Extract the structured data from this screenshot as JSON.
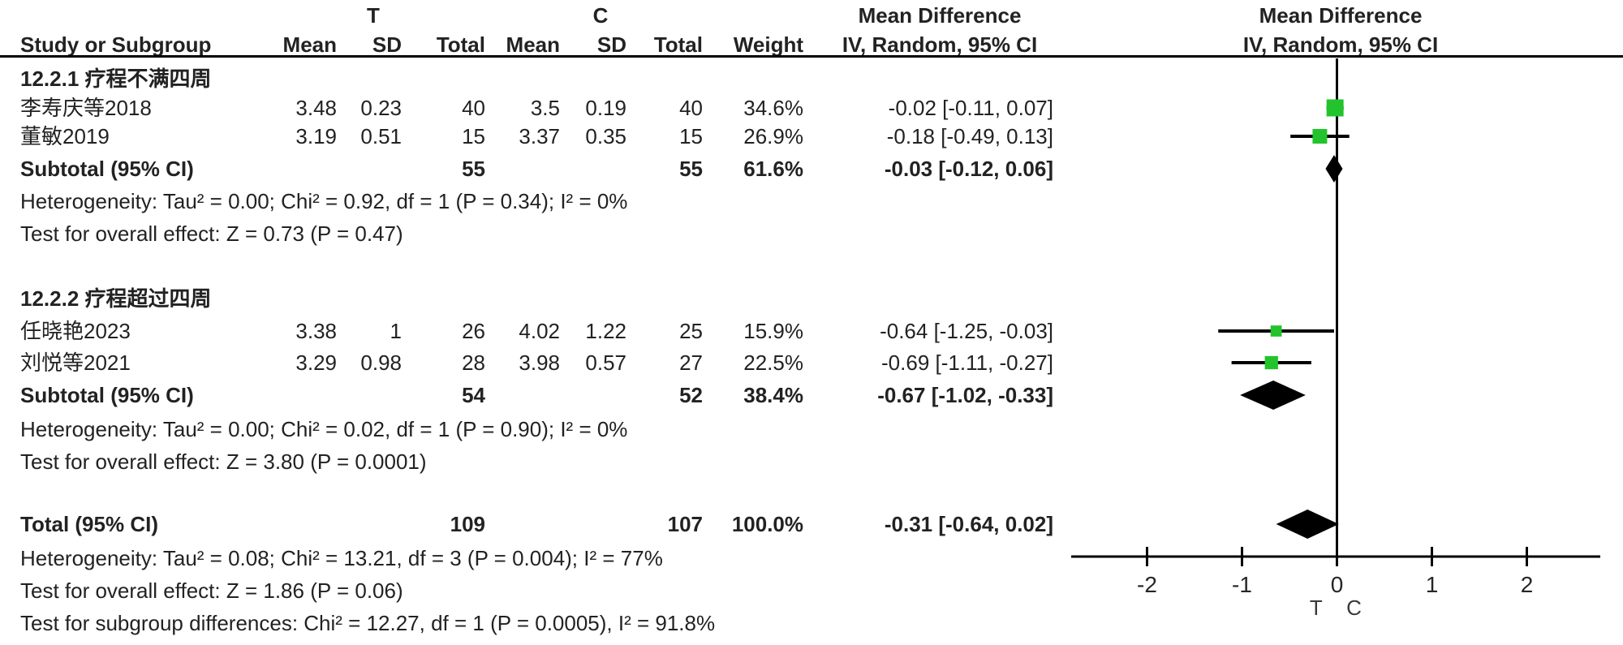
{
  "header": {
    "group_t": "T",
    "group_c": "C",
    "effect_title": "Mean Difference",
    "effect_subtitle": "IV, Random, 95% CI",
    "study": "Study or Subgroup",
    "mean": "Mean",
    "sd": "SD",
    "total": "Total",
    "weight": "Weight"
  },
  "groups": [
    {
      "title": "12.2.1 疗程不满四周",
      "studies": [
        {
          "name": "李寿庆等2018",
          "mean_t": "3.48",
          "sd_t": "0.23",
          "total_t": "40",
          "mean_c": "3.5",
          "sd_c": "0.19",
          "total_c": "40",
          "weight": "34.6%",
          "ci": "-0.02 [-0.11, 0.07]"
        },
        {
          "name": "董敏2019",
          "mean_t": "3.19",
          "sd_t": "0.51",
          "total_t": "15",
          "mean_c": "3.37",
          "sd_c": "0.35",
          "total_c": "15",
          "weight": "26.9%",
          "ci": "-0.18 [-0.49, 0.13]"
        }
      ],
      "subtotal": {
        "label": "Subtotal (95% CI)",
        "total_t": "55",
        "total_c": "55",
        "weight": "61.6%",
        "ci": "-0.03 [-0.12, 0.06]"
      },
      "heterogeneity": "Heterogeneity: Tau² = 0.00; Chi² = 0.92, df = 1 (P = 0.34); I² = 0%",
      "overall_effect": "Test for overall effect: Z = 0.73 (P = 0.47)"
    },
    {
      "title": "12.2.2 疗程超过四周",
      "studies": [
        {
          "name": "任晓艳2023",
          "mean_t": "3.38",
          "sd_t": "1",
          "total_t": "26",
          "mean_c": "4.02",
          "sd_c": "1.22",
          "total_c": "25",
          "weight": "15.9%",
          "ci": "-0.64 [-1.25, -0.03]"
        },
        {
          "name": "刘悦等2021",
          "mean_t": "3.29",
          "sd_t": "0.98",
          "total_t": "28",
          "mean_c": "3.98",
          "sd_c": "0.57",
          "total_c": "27",
          "weight": "22.5%",
          "ci": "-0.69 [-1.11, -0.27]"
        }
      ],
      "subtotal": {
        "label": "Subtotal (95% CI)",
        "total_t": "54",
        "total_c": "52",
        "weight": "38.4%",
        "ci": "-0.67 [-1.02, -0.33]"
      },
      "heterogeneity": "Heterogeneity: Tau² = 0.00; Chi² = 0.02, df = 1 (P = 0.90); I² = 0%",
      "overall_effect": "Test for overall effect: Z = 3.80 (P = 0.0001)"
    }
  ],
  "total": {
    "label": "Total (95% CI)",
    "total_t": "109",
    "total_c": "107",
    "weight": "100.0%",
    "ci": "-0.31 [-0.64, 0.02]"
  },
  "footer": {
    "heterogeneity": "Heterogeneity: Tau² = 0.08; Chi² = 13.21, df = 3 (P = 0.004); I² = 77%",
    "overall_effect": "Test for overall effect: Z = 1.86 (P = 0.06)",
    "subgroup_diff": "Test for subgroup differences: Chi² = 12.27, df = 1 (P = 0.0005), I² = 91.8%"
  },
  "chart_data": {
    "type": "forest",
    "effect_measure": "Mean Difference, IV, Random, 95% CI",
    "colors": {
      "marker": "#23c32d",
      "diamond": "#000000",
      "line": "#000000"
    },
    "axis": {
      "ticks": [
        -2,
        -1,
        0,
        1,
        2
      ],
      "range": [
        -2.8,
        2.78
      ],
      "zero_line": 0,
      "left_label": "T",
      "right_label": "C"
    },
    "entries": [
      {
        "name": "李寿庆等2018",
        "kind": "study",
        "md": -0.02,
        "ci_low": -0.11,
        "ci_high": 0.07,
        "weight_pct": 34.6
      },
      {
        "name": "董敏2019",
        "kind": "study",
        "md": -0.18,
        "ci_low": -0.49,
        "ci_high": 0.13,
        "weight_pct": 26.9
      },
      {
        "name": "Subtotal 12.2.1",
        "kind": "subtotal",
        "md": -0.03,
        "ci_low": -0.12,
        "ci_high": 0.06
      },
      {
        "name": "任晓艳2023",
        "kind": "study",
        "md": -0.64,
        "ci_low": -1.25,
        "ci_high": -0.03,
        "weight_pct": 15.9
      },
      {
        "name": "刘悦等2021",
        "kind": "study",
        "md": -0.69,
        "ci_low": -1.11,
        "ci_high": -0.27,
        "weight_pct": 22.5
      },
      {
        "name": "Subtotal 12.2.2",
        "kind": "subtotal",
        "md": -0.67,
        "ci_low": -1.02,
        "ci_high": -0.33
      },
      {
        "name": "Total",
        "kind": "total",
        "md": -0.31,
        "ci_low": -0.64,
        "ci_high": 0.02
      }
    ]
  }
}
